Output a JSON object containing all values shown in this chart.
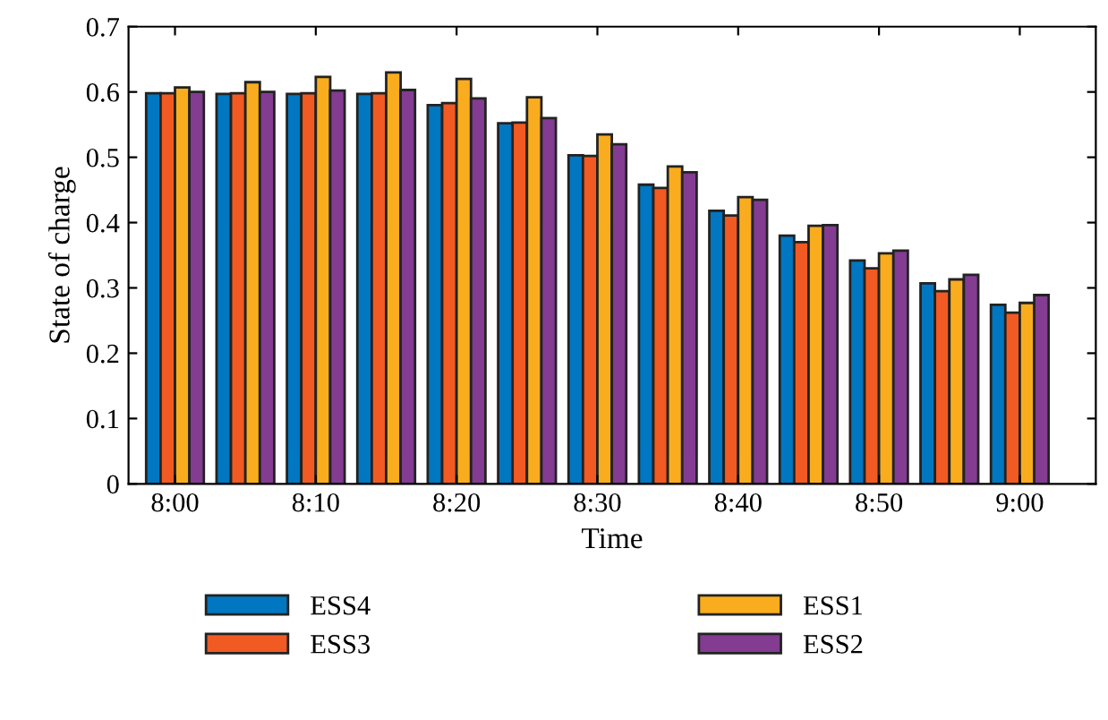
{
  "chart_data": {
    "type": "bar",
    "xlabel": "Time",
    "ylabel": "State of charge",
    "categories": [
      "8:00",
      null,
      "8:10",
      null,
      "8:20",
      null,
      "8:30",
      null,
      "8:40",
      null,
      "8:50",
      null,
      "9:00"
    ],
    "series": [
      {
        "name": "ESS4",
        "color": "#0077c0",
        "values": [
          0.598,
          0.597,
          0.597,
          0.597,
          0.58,
          0.552,
          0.503,
          0.458,
          0.418,
          0.38,
          0.342,
          0.307,
          0.274
        ]
      },
      {
        "name": "ESS3",
        "color": "#f15a22",
        "values": [
          0.598,
          0.598,
          0.598,
          0.598,
          0.583,
          0.553,
          0.502,
          0.453,
          0.411,
          0.37,
          0.33,
          0.295,
          0.262
        ]
      },
      {
        "name": "ESS1",
        "color": "#f9ad1e",
        "values": [
          0.607,
          0.615,
          0.623,
          0.63,
          0.62,
          0.592,
          0.535,
          0.486,
          0.439,
          0.395,
          0.353,
          0.313,
          0.277
        ]
      },
      {
        "name": "ESS2",
        "color": "#833c91",
        "values": [
          0.6,
          0.6,
          0.602,
          0.603,
          0.59,
          0.56,
          0.52,
          0.477,
          0.435,
          0.396,
          0.357,
          0.32,
          0.289
        ]
      }
    ],
    "ylim": [
      0,
      0.7
    ],
    "yticks": [
      0,
      0.1,
      0.2,
      0.3,
      0.4,
      0.5,
      0.6,
      0.7
    ],
    "grid": false,
    "legend": "bottom"
  }
}
